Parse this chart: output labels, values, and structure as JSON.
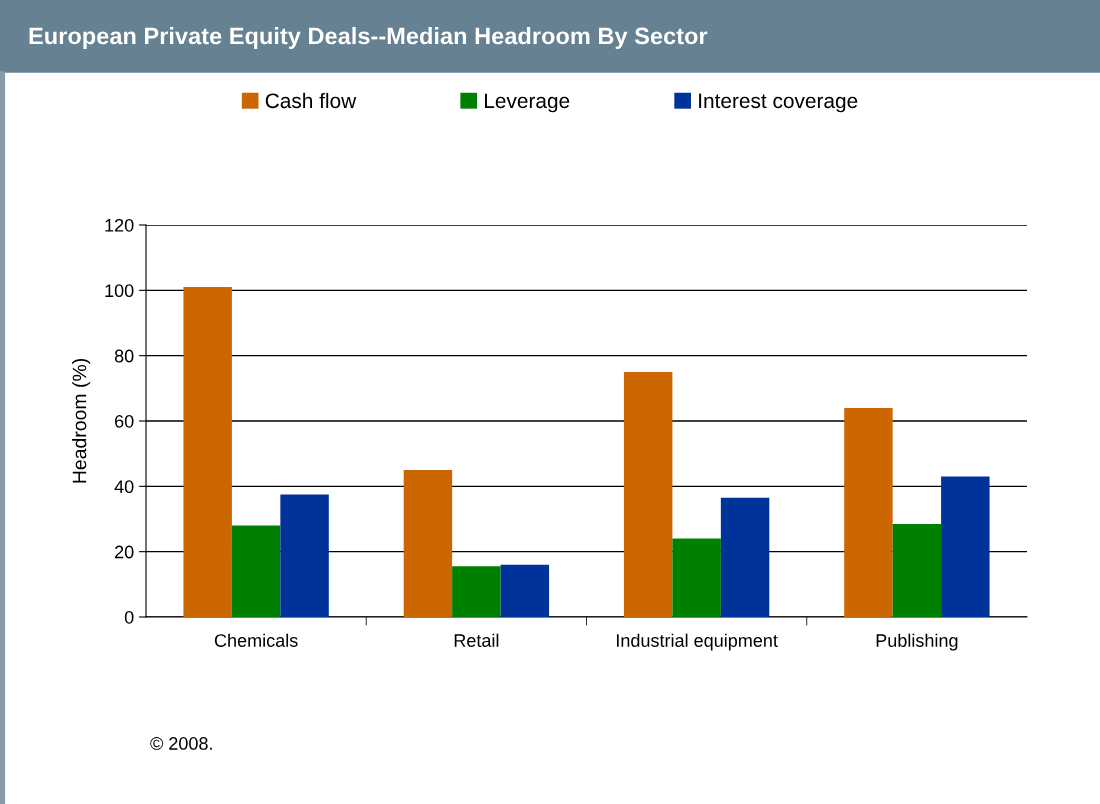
{
  "chart_data": {
    "type": "bar",
    "title": "European Private Equity Deals--Median Headroom By Sector",
    "ylabel": "Headroom (%)",
    "categories": [
      "Chemicals",
      "Retail",
      "Industrial equipment",
      "Publishing"
    ],
    "series": [
      {
        "name": "Cash flow",
        "color": "#cc6600",
        "values": [
          101,
          45,
          75,
          64
        ]
      },
      {
        "name": "Leverage",
        "color": "#008000",
        "values": [
          28,
          15.5,
          24,
          28.5
        ]
      },
      {
        "name": "Interest coverage",
        "color": "#003399",
        "values": [
          37.5,
          16,
          36.5,
          43
        ]
      }
    ],
    "ylim": [
      0,
      120
    ],
    "yticks": [
      0,
      20,
      40,
      60,
      80,
      100,
      120
    ],
    "grid": "y",
    "legend": "top",
    "annotations": [
      "© 2008."
    ]
  }
}
